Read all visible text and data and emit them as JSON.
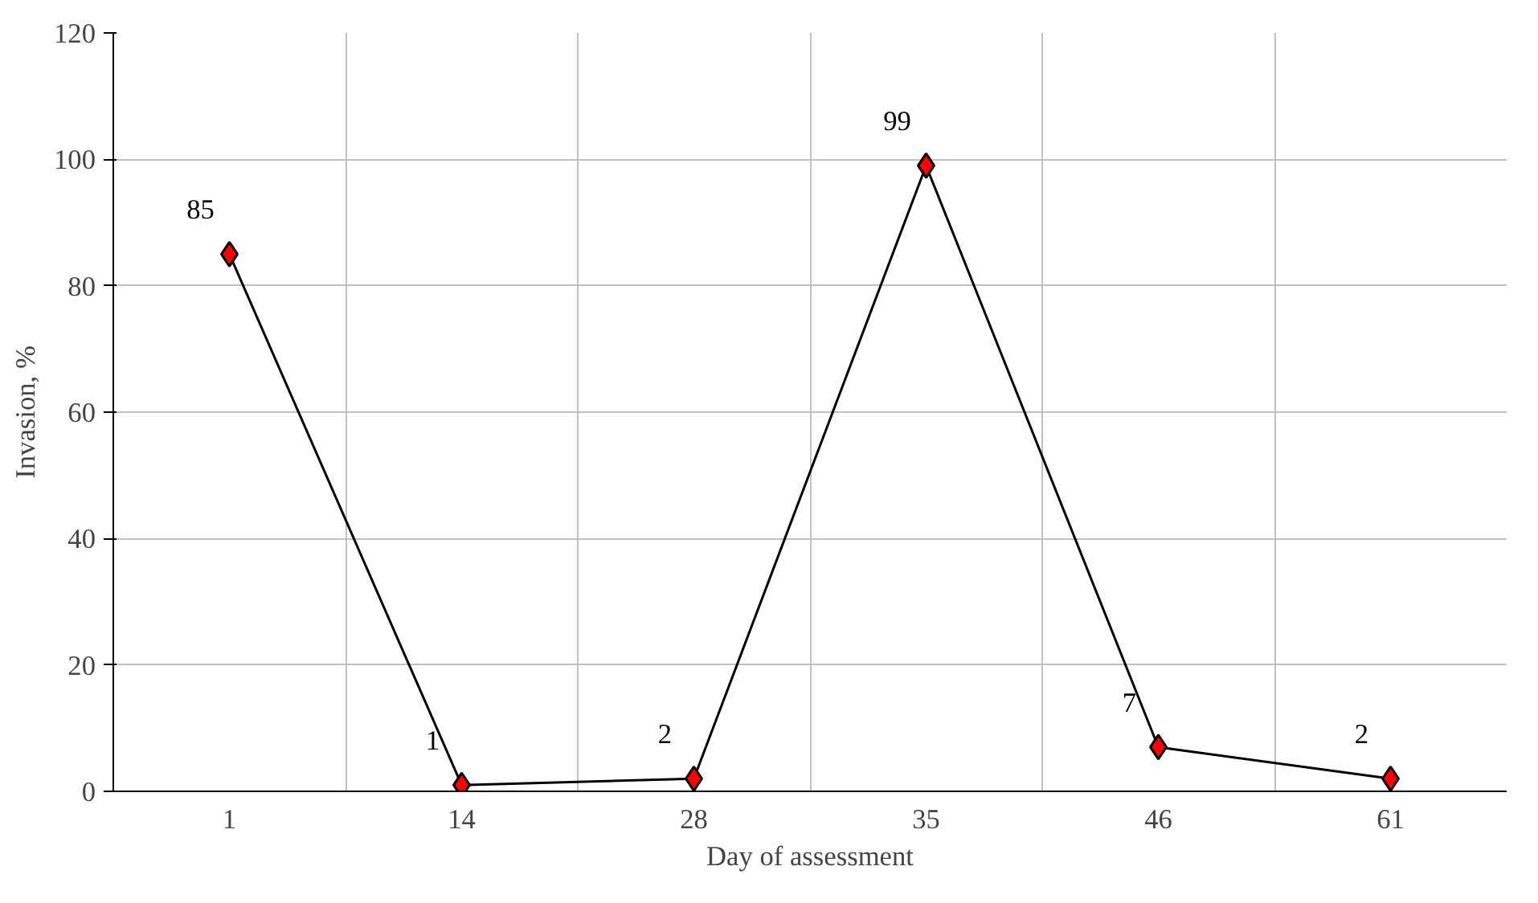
{
  "chart_data": {
    "type": "line",
    "xlabel": "Day of assessment",
    "ylabel": "Invasion, %",
    "categories": [
      "1",
      "14",
      "28",
      "35",
      "46",
      "61"
    ],
    "series": [
      {
        "color": "#ff0000",
        "values": [
          85,
          1,
          2,
          99,
          7,
          2
        ]
      }
    ],
    "ylim": [
      0,
      120
    ],
    "yticks": [
      0,
      20,
      40,
      60,
      80,
      100,
      120
    ],
    "grid": true,
    "marker": "diamond",
    "line_style": "solid",
    "data_labels": true
  }
}
